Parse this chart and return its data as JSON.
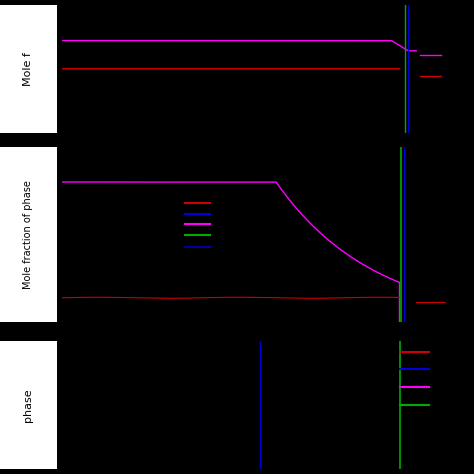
{
  "background_color": "#000000",
  "label_bg_color": "#ffffff",
  "label_text_color": "#000000",
  "fig_width": 4.74,
  "fig_height": 4.74,
  "dpi": 100,
  "colors": {
    "magenta": "#ff00ff",
    "red": "#cc0000",
    "blue": "#0000dd",
    "green": "#00aa00",
    "dark_blue": "#000099"
  },
  "panel1_label": "Mole f",
  "panel2_label": "Mole fraction of phase",
  "panel3_label": "phase"
}
